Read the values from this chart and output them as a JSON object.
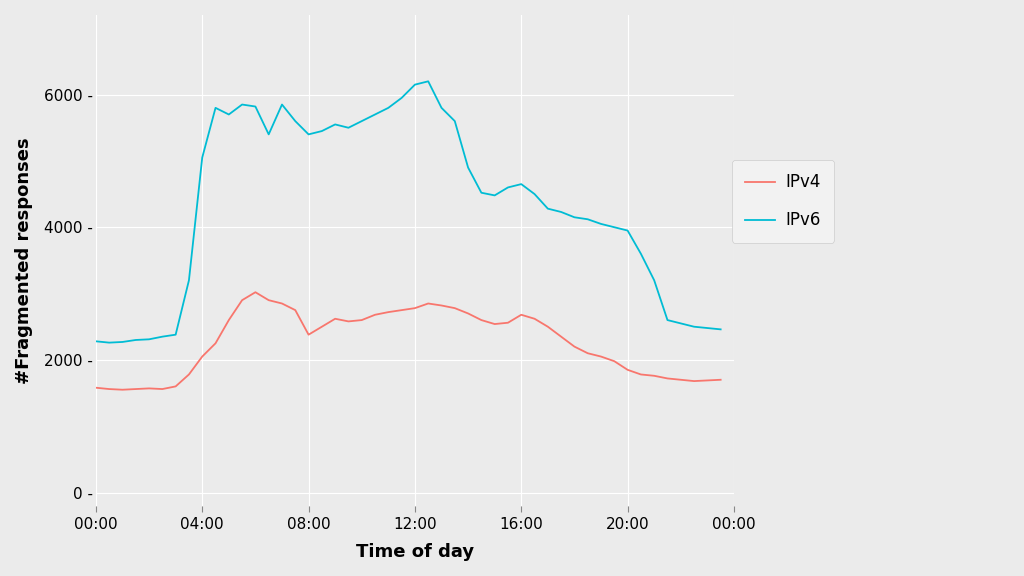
{
  "title": "",
  "xlabel": "Time of day",
  "ylabel": "#Fragmented responses",
  "background_color": "#EBEBEB",
  "grid_color": "#FFFFFF",
  "ipv4_color": "#F8766D",
  "ipv6_color": "#00BCD4",
  "legend_bg": "#EBEBEB",
  "x_ticks_labels": [
    "00:00",
    "04:00",
    "08:00",
    "12:00",
    "16:00",
    "20:00",
    "00:00"
  ],
  "x_ticks_hours": [
    0,
    4,
    8,
    12,
    16,
    20,
    24
  ],
  "ylim": [
    -200,
    7200
  ],
  "yticks": [
    0,
    2000,
    4000,
    6000
  ],
  "ytick_labels": [
    "0",
    "2000",
    "4000",
    "6000"
  ],
  "time_hours": [
    0,
    0.5,
    1.0,
    1.5,
    2.0,
    2.5,
    3.0,
    3.5,
    4.0,
    4.5,
    5.0,
    5.5,
    6.0,
    6.5,
    7.0,
    7.5,
    8.0,
    8.5,
    9.0,
    9.5,
    10.0,
    10.5,
    11.0,
    11.5,
    12.0,
    12.5,
    13.0,
    13.5,
    14.0,
    14.5,
    15.0,
    15.5,
    16.0,
    16.5,
    17.0,
    17.5,
    18.0,
    18.5,
    19.0,
    19.5,
    20.0,
    20.5,
    21.0,
    21.5,
    22.0,
    22.5,
    23.0,
    23.5
  ],
  "ipv4": [
    1580,
    1560,
    1550,
    1560,
    1570,
    1560,
    1600,
    1780,
    2050,
    2250,
    2600,
    2900,
    3020,
    2900,
    2850,
    2750,
    2380,
    2500,
    2620,
    2580,
    2600,
    2680,
    2720,
    2750,
    2780,
    2850,
    2820,
    2780,
    2700,
    2600,
    2540,
    2560,
    2680,
    2620,
    2500,
    2350,
    2200,
    2100,
    2050,
    1980,
    1850,
    1780,
    1760,
    1720,
    1700,
    1680,
    1690,
    1700
  ],
  "ipv6": [
    2280,
    2260,
    2270,
    2300,
    2310,
    2350,
    2380,
    3200,
    5050,
    5800,
    5700,
    5850,
    5820,
    5400,
    5850,
    5600,
    5400,
    5450,
    5550,
    5500,
    5600,
    5700,
    5800,
    5950,
    6150,
    6200,
    5800,
    5600,
    4900,
    4520,
    4480,
    4600,
    4650,
    4500,
    4280,
    4230,
    4150,
    4120,
    4050,
    4000,
    3950,
    3600,
    3200,
    2600,
    2550,
    2500,
    2480,
    2460
  ]
}
